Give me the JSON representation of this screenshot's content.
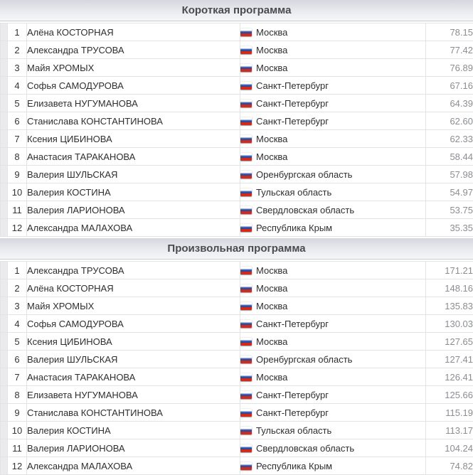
{
  "sections": [
    {
      "title": "Короткая программа",
      "rows": [
        {
          "rank": "1",
          "name": "Алёна КОСТОРНАЯ",
          "region": "Москва",
          "score": "78.15"
        },
        {
          "rank": "2",
          "name": "Александра ТРУСОВА",
          "region": "Москва",
          "score": "77.42"
        },
        {
          "rank": "3",
          "name": "Майя ХРОМЫХ",
          "region": "Москва",
          "score": "76.89"
        },
        {
          "rank": "4",
          "name": "Софья САМОДУРОВА",
          "region": "Санкт-Петербург",
          "score": "67.16"
        },
        {
          "rank": "5",
          "name": "Елизавета НУГУМАНОВА",
          "region": "Санкт-Петербург",
          "score": "64.39"
        },
        {
          "rank": "6",
          "name": "Станислава КОНСТАНТИНОВА",
          "region": "Санкт-Петербург",
          "score": "62.60"
        },
        {
          "rank": "7",
          "name": "Ксения ЦИБИНОВА",
          "region": "Москва",
          "score": "62.33"
        },
        {
          "rank": "8",
          "name": "Анастасия ТАРАКАНОВА",
          "region": "Москва",
          "score": "58.44"
        },
        {
          "rank": "9",
          "name": "Валерия ШУЛЬСКАЯ",
          "region": "Оренбургская область",
          "score": "57.98"
        },
        {
          "rank": "10",
          "name": "Валерия КОСТИНА",
          "region": "Тульская область",
          "score": "54.97"
        },
        {
          "rank": "11",
          "name": "Валерия ЛАРИОНОВА",
          "region": "Свердловская область",
          "score": "53.75"
        },
        {
          "rank": "12",
          "name": "Александра МАЛАХОВА",
          "region": "Республика Крым",
          "score": "35.35"
        }
      ]
    },
    {
      "title": "Произвольная программа",
      "rows": [
        {
          "rank": "1",
          "name": "Александра ТРУСОВА",
          "region": "Москва",
          "score": "171.21"
        },
        {
          "rank": "2",
          "name": "Алёна КОСТОРНАЯ",
          "region": "Москва",
          "score": "148.16"
        },
        {
          "rank": "3",
          "name": "Майя ХРОМЫХ",
          "region": "Москва",
          "score": "135.83"
        },
        {
          "rank": "4",
          "name": "Софья САМОДУРОВА",
          "region": "Санкт-Петербург",
          "score": "130.03"
        },
        {
          "rank": "5",
          "name": "Ксения ЦИБИНОВА",
          "region": "Москва",
          "score": "127.65"
        },
        {
          "rank": "6",
          "name": "Валерия ШУЛЬСКАЯ",
          "region": "Оренбургская область",
          "score": "127.41"
        },
        {
          "rank": "7",
          "name": "Анастасия ТАРАКАНОВА",
          "region": "Москва",
          "score": "126.41"
        },
        {
          "rank": "8",
          "name": "Елизавета НУГУМАНОВА",
          "region": "Санкт-Петербург",
          "score": "125.66"
        },
        {
          "rank": "9",
          "name": "Станислава КОНСТАНТИНОВА",
          "region": "Санкт-Петербург",
          "score": "115.19"
        },
        {
          "rank": "10",
          "name": "Валерия КОСТИНА",
          "region": "Тульская область",
          "score": "113.17"
        },
        {
          "rank": "11",
          "name": "Валерия ЛАРИОНОВА",
          "region": "Свердловская область",
          "score": "104.24"
        },
        {
          "rank": "12",
          "name": "Александра МАЛАХОВА",
          "region": "Республика Крым",
          "score": "74.82"
        }
      ]
    }
  ],
  "flag_icon": "russia-flag-icon",
  "colors": {
    "header_text": "#4a4b50",
    "header_gradient_top": "#d5d7de",
    "header_gradient_bottom": "#f5f6f8",
    "body_text": "#2e2e30",
    "score_text": "#8a8d92",
    "row_border": "#e3e3e3",
    "marker_bg": "#ebebed",
    "flag_white": "#ffffff",
    "flag_blue": "#2d50a7",
    "flag_red": "#d52b1e"
  }
}
